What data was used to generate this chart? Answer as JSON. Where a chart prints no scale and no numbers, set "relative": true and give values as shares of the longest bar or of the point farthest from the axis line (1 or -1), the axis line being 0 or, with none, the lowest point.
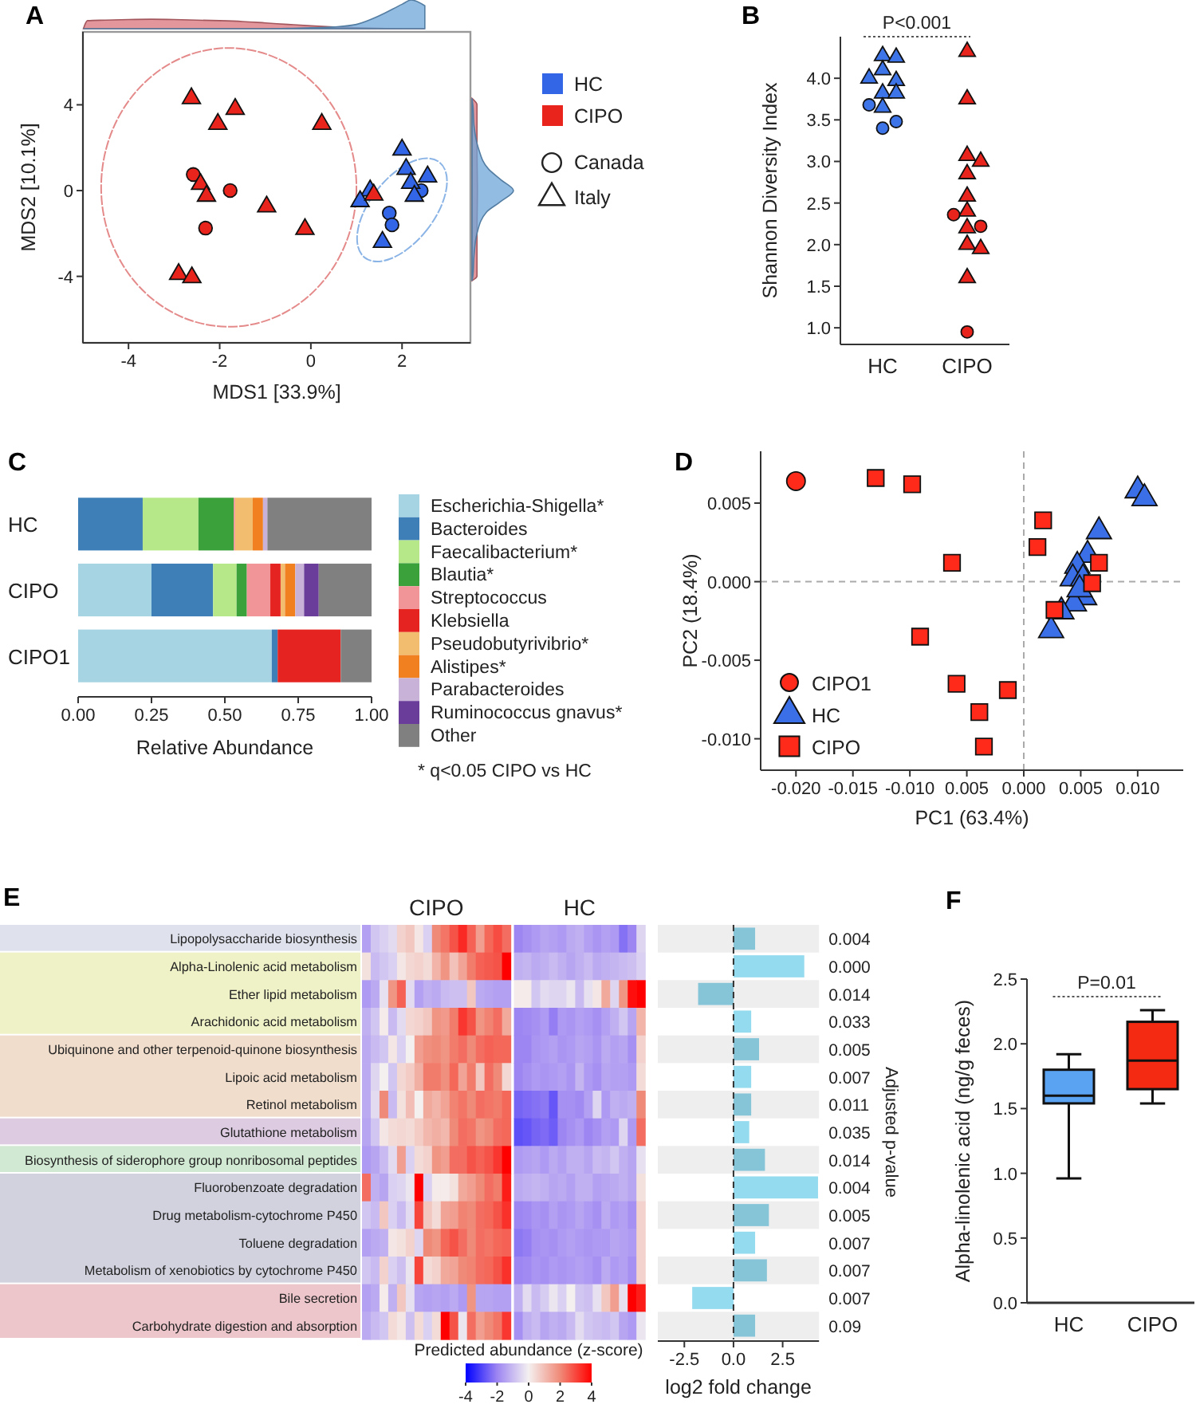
{
  "chart_data": [
    {
      "type": "scatter",
      "title": "A",
      "xlabel": "MDS1 [33.9%]",
      "ylabel": "MDS2 [10.1%]",
      "legend": "right",
      "annotations": [
        "Canada",
        "Italy"
      ],
      "xlim": [
        -5,
        3.5
      ],
      "ylim": [
        -7.1,
        7.4
      ],
      "xticks": [
        -4,
        -2,
        0,
        2
      ],
      "yticks": [
        -4,
        0,
        4
      ],
      "series": [
        {
          "name": "HC",
          "color": "#3366e6",
          "marker": "circle",
          "x": [
            2.42,
            1.72,
            1.78
          ],
          "values": [
            0,
            -1.05,
            -1.6
          ]
        },
        {
          "color": "#3366e6",
          "marker": "triangle",
          "x": [
            2.0,
            2.09,
            2.56,
            2.19,
            1.3,
            1.08,
            2.27,
            1.57
          ],
          "values": [
            1.9,
            1.0,
            0.65,
            0.35,
            0,
            -0.5,
            -0.25,
            -2.4
          ]
        },
        {
          "name": "CIPO",
          "color": "#e8241c",
          "marker": "circle",
          "x": [
            -2.58,
            -1.77,
            -2.31
          ],
          "values": [
            0.75,
            0,
            -1.75
          ]
        },
        {
          "color": "#e8241c",
          "marker": "triangle",
          "x": [
            -2.62,
            -1.66,
            -2.04,
            0.24,
            -2.42,
            -2.29,
            -0.97,
            -0.13,
            -2.9,
            -2.61,
            1.38
          ],
          "values": [
            4.3,
            3.8,
            3.1,
            3.1,
            0.3,
            -0.25,
            -0.75,
            -1.8,
            -3.9,
            -4.05,
            -0.2
          ]
        }
      ]
    },
    {
      "type": "area",
      "relative": true,
      "tick_labels": false,
      "xlim": [
        -5,
        3.5
      ],
      "x": [
        -4.99,
        -4.9,
        -4.5,
        -4,
        -3.5,
        -3,
        -2.5,
        -2,
        -1.5,
        -1,
        -0.5,
        0,
        0.5,
        1,
        1.5,
        2,
        2.2,
        2.5
      ],
      "series": [
        {
          "color": "#d9737a",
          "values": [
            0,
            0.28,
            0.3,
            0.32,
            0.33,
            0.32,
            0.3,
            0.28,
            0.25,
            0.2,
            0.15,
            0.1,
            0.06,
            0.03,
            0.01,
            0,
            0,
            0
          ]
        },
        {
          "color": "#6fa6d8",
          "values": [
            0,
            0,
            0,
            0,
            0,
            0,
            0,
            0,
            0,
            0,
            0.01,
            0.03,
            0.06,
            0.15,
            0.45,
            0.85,
            1,
            0.8
          ]
        }
      ]
    },
    {
      "type": "scatter",
      "title": "B",
      "ylabel": "Shannon Diversity Index",
      "categories": [
        "HC",
        "CIPO"
      ],
      "annotations": [
        "P<0.001"
      ],
      "ylim": [
        0.8,
        4.5
      ],
      "yticks": [
        {
          "value": 1,
          "label": "1.0"
        },
        1.5,
        {
          "value": 2,
          "label": "2.0"
        },
        2.5,
        {
          "value": 3,
          "label": "3.0"
        },
        3.5,
        {
          "value": 4,
          "label": "4.0"
        }
      ],
      "series": [
        {
          "color": "#3d74e8",
          "marker": "triangle",
          "x": [
            "HC",
            "HC",
            "HC",
            "HC",
            "HC",
            "HC",
            "HC",
            "HC"
          ],
          "values": [
            4.27,
            4.25,
            4.1,
            3.97,
            4.0,
            3.82,
            3.82,
            3.65
          ]
        },
        {
          "color": "#3d74e8",
          "marker": "circle",
          "x": [
            "HC",
            "HC",
            "HC"
          ],
          "values": [
            3.4,
            3.48,
            3.68
          ]
        },
        {
          "color": "#e8241c",
          "marker": "triangle",
          "x": [
            "CIPO",
            "CIPO",
            "CIPO",
            "CIPO",
            "CIPO",
            "CIPO",
            "CIPO",
            "CIPO",
            "CIPO",
            "CIPO",
            "CIPO"
          ],
          "values": [
            4.32,
            3.75,
            3.07,
            3.0,
            2.85,
            2.58,
            2.4,
            2.2,
            2.0,
            1.95,
            1.6
          ]
        },
        {
          "color": "#e8241c",
          "marker": "circle",
          "x": [
            "CIPO",
            "CIPO",
            "CIPO"
          ],
          "values": [
            2.22,
            2.36,
            0.95
          ]
        }
      ]
    },
    {
      "type": "bar",
      "title": "C",
      "orientation": "horizontal",
      "stacked": true,
      "legend": "right",
      "xlabel": "Relative Abundance",
      "annotations": [
        "* q<0.05 CIPO vs HC"
      ],
      "categories": [
        "HC",
        "CIPO",
        "CIPO1"
      ],
      "xlim": [
        0,
        1
      ],
      "xticks": [
        {
          "value": 0,
          "label": "0.00"
        },
        {
          "value": 0.25,
          "label": "0.25"
        },
        {
          "value": 0.5,
          "label": "0.50"
        },
        {
          "value": 0.75,
          "label": "0.75"
        },
        {
          "value": 1,
          "label": "1.00"
        }
      ],
      "series": [
        {
          "name": "Escherichia-Shigella*",
          "color": "#a6d4e3",
          "values": [
            0,
            0.25,
            0.66
          ]
        },
        {
          "name": "Bacteroides",
          "color": "#3f7fb8",
          "values": [
            0.22,
            0.21,
            0.02
          ]
        },
        {
          "name": "Faecalibacterium*",
          "color": "#b6e88a",
          "values": [
            0.19,
            0.08,
            0
          ]
        },
        {
          "name": "Blautia*",
          "color": "#3ba13a",
          "values": [
            0.12,
            0.035,
            0
          ]
        },
        {
          "name": "Streptococcus",
          "color": "#f19599",
          "values": [
            0.005,
            0.08,
            0
          ]
        },
        {
          "name": "Klebsiella",
          "color": "#e52421",
          "values": [
            0,
            0.035,
            0.215
          ]
        },
        {
          "name": "Pseudobutyrivibrio*",
          "color": "#f2bd6f",
          "values": [
            0.06,
            0.015,
            0
          ]
        },
        {
          "name": "Alistipes*",
          "color": "#f08020",
          "values": [
            0.035,
            0.035,
            0
          ]
        },
        {
          "name": "Parabacteroides",
          "color": "#c9b2d8",
          "values": [
            0.015,
            0.03,
            0
          ]
        },
        {
          "name": "Ruminococcus gnavus*",
          "color": "#6a3d9a",
          "values": [
            0,
            0.05,
            0
          ]
        },
        {
          "name": "Other",
          "color": "#808080",
          "values": [
            0.355,
            0.18,
            0.105
          ]
        }
      ]
    },
    {
      "type": "scatter",
      "title": "D",
      "xlabel": "PC1 (63.4%)",
      "ylabel": "PC2 (18.4%)",
      "legend": "bottom left",
      "xlim": [
        -0.0231,
        0.014
      ],
      "ylim": [
        -0.012,
        0.0083
      ],
      "xticks": [
        {
          "value": -0.02,
          "label": "-0.020"
        },
        -0.015,
        {
          "value": -0.01,
          "label": "-0.010"
        },
        {
          "value": -0.005,
          "label": "0.005"
        },
        {
          "value": 0,
          "label": "0.000"
        },
        0.005,
        {
          "value": 0.01,
          "label": "0.010"
        }
      ],
      "yticks": [
        0.005,
        {
          "value": 0,
          "label": "0.000"
        },
        -0.005,
        {
          "value": -0.01,
          "label": "-0.010"
        }
      ],
      "ref_lines": [
        {
          "axis": "x",
          "value": 0,
          "line_style": "dashed"
        },
        {
          "axis": "y",
          "value": 0,
          "line_style": "dashed"
        }
      ],
      "series": [
        {
          "name": "CIPO1",
          "color": "#ff2a1a",
          "marker": "circle",
          "x": [
            -0.02
          ],
          "values": [
            0.0064
          ]
        },
        {
          "name": "HC",
          "color": "#3b6fe8",
          "marker": "triangle",
          "x": [
            0.01,
            0.0106,
            0.0066,
            0.0056,
            0.0047,
            0.0043,
            0.0052,
            0.0053,
            0.0044,
            0.0033,
            0.0024,
            0.0049
          ],
          "values": [
            0.0058,
            0.0053,
            0.0032,
            0.0017,
            0.001,
            0.0002,
            0.0002,
            -0.001,
            -0.0014,
            -0.0019,
            -0.0031,
            -0.0005
          ]
        },
        {
          "name": "CIPO",
          "color": "#ff2a1a",
          "marker": "square",
          "x": [
            -0.013,
            -0.0098,
            -0.0063,
            -0.0091,
            -0.0059,
            -0.0014,
            -0.0039,
            -0.0035,
            0.0017,
            0.0012,
            0.0066,
            0.006,
            0.0027
          ],
          "values": [
            0.0066,
            0.0062,
            0.0012,
            -0.0035,
            -0.0065,
            -0.0069,
            -0.0083,
            -0.0105,
            0.0039,
            0.0022,
            0.0012,
            -0.0001,
            -0.0018
          ]
        }
      ]
    },
    {
      "type": "heatmap",
      "title": "E",
      "annotations": [
        "CIPO",
        "HC"
      ],
      "tick_labels": "y",
      "clim": [
        -4,
        4
      ],
      "cticks": [
        -4,
        -2,
        0,
        2,
        4
      ],
      "clabel": "Predicted abundance (z-score)",
      "categories": [
        null,
        null,
        null,
        null,
        null,
        null,
        null,
        null,
        null,
        null,
        null,
        null,
        null,
        null,
        null,
        null,
        null,
        null,
        null,
        null,
        null,
        null,
        null,
        null,
        null,
        null,
        null,
        null,
        null,
        null,
        null,
        null,
        null
      ],
      "y_categories": [
        "Lipopolysaccharide biosynthesis",
        "Alpha-Linolenic acid metabolism",
        "Ether lipid metabolism",
        "Arachidonic acid metabolism",
        "Ubiquinone and other terpenoid-quinone biosynthesis",
        "Lipoic acid metabolism",
        "Retinol metabolism",
        "Glutathione metabolism",
        "Biosynthesis of siderophore group nonribosomal peptides",
        "Fluorobenzoate degradation",
        "Drug metabolism-cytochrome P450",
        "Toluene degradation",
        "Metabolism of xenobiotics by cytochrome P450",
        "Bile secretion",
        "Carbohydrate digestion and absorption"
      ],
      "cells": [
        [
          -1.5,
          -0.8,
          -0.6,
          -0.4,
          0.6,
          0.8,
          0.2,
          -0.6,
          2.0,
          2.3,
          2.8,
          3.4,
          2.6,
          1.6,
          2.5,
          2.9,
          2.4,
          null,
          -2.0,
          -1.8,
          -1.6,
          -1.4,
          -1.5,
          -1.6,
          -1.3,
          -1.2,
          -1.5,
          -1.7,
          -1.5,
          -1.6,
          -2.3,
          -2.0,
          -0.5
        ],
        [
          0.3,
          -1.0,
          -0.8,
          -0.6,
          0.2,
          0.5,
          0.6,
          0.4,
          1.2,
          1.8,
          0.9,
          1.5,
          2.2,
          2.6,
          2.7,
          2.8,
          4.0,
          null,
          -1.2,
          -1.1,
          -1.3,
          -1.2,
          -1.0,
          -1.2,
          -1.4,
          -1.2,
          -1.0,
          -1.3,
          -1.2,
          -1.1,
          -1.0,
          -0.9,
          -0.6
        ],
        [
          -1.6,
          -1.3,
          -0.3,
          1.8,
          2.6,
          -0.4,
          -1.5,
          -1.2,
          -1.3,
          -1.0,
          -0.9,
          -0.9,
          0.8,
          -1.3,
          -1.4,
          -1.5,
          -1.5,
          null,
          0.1,
          0.1,
          -0.8,
          -0.4,
          -0.5,
          -0.5,
          -0.2,
          -1.0,
          -0.3,
          0.2,
          1.4,
          -0.5,
          1.8,
          3.8,
          4.0
        ],
        [
          -1.2,
          -0.8,
          0.1,
          -1.0,
          -0.4,
          0.5,
          0.6,
          0.8,
          1.8,
          1.7,
          2.2,
          3.2,
          2.8,
          1.8,
          2.1,
          2.4,
          1.4,
          null,
          -2.0,
          -1.9,
          -1.8,
          -1.6,
          -2.1,
          -1.6,
          -1.7,
          -1.5,
          -1.6,
          -1.8,
          -1.5,
          -1.2,
          -0.8,
          -1.4,
          1.2
        ],
        [
          -1.3,
          -1.0,
          -0.8,
          0.2,
          -0.6,
          0.0,
          1.6,
          1.9,
          2.0,
          1.8,
          2.2,
          2.4,
          2.0,
          2.4,
          2.6,
          2.5,
          2.5,
          null,
          -2.0,
          -2.0,
          -1.7,
          -1.6,
          -1.5,
          -1.7,
          -1.6,
          -1.4,
          -1.5,
          -1.7,
          -1.3,
          -1.5,
          -1.4,
          -1.8,
          0.6
        ],
        [
          -1.3,
          -0.5,
          0.0,
          -0.8,
          0.5,
          0.7,
          1.3,
          2.2,
          2.2,
          1.9,
          2.5,
          1.5,
          2.2,
          0.8,
          2.4,
          2.0,
          0.5,
          null,
          -2.0,
          -1.8,
          -1.6,
          -1.7,
          -1.6,
          -1.5,
          -1.7,
          -1.1,
          -1.6,
          -1.8,
          -1.4,
          -1.5,
          -1.5,
          -1.6,
          0.4
        ],
        [
          -1.3,
          -0.4,
          2.0,
          -1.0,
          0.3,
          1.0,
          0.0,
          1.4,
          1.2,
          1.5,
          2.1,
          2.3,
          2.0,
          2.4,
          2.3,
          2.2,
          2.5,
          null,
          -2.5,
          -2.4,
          -2.3,
          -2.2,
          -2.7,
          -1.8,
          -1.8,
          -1.9,
          -1.5,
          -0.5,
          -1.6,
          -1.2,
          -1.3,
          -1.2,
          2.0
        ],
        [
          -1.4,
          -0.8,
          0.2,
          0.4,
          0.5,
          0.4,
          0.7,
          1.1,
          1.3,
          1.1,
          2.0,
          2.4,
          2.3,
          1.8,
          2.0,
          2.4,
          2.5,
          null,
          -2.8,
          -2.7,
          -2.5,
          -2.4,
          -2.6,
          -2.0,
          -1.8,
          -1.6,
          -2.0,
          -1.8,
          -1.5,
          -1.6,
          -0.5,
          -1.6,
          2.4
        ],
        [
          -1.6,
          -1.4,
          -1.0,
          -0.4,
          1.6,
          -0.6,
          0.4,
          0.6,
          1.8,
          1.6,
          2.4,
          2.4,
          2.8,
          2.6,
          2.8,
          3.2,
          4.0,
          null,
          -1.6,
          -1.5,
          -1.4,
          -1.6,
          -1.3,
          -1.5,
          -1.2,
          -1.2,
          -1.4,
          -1.0,
          -1.1,
          -0.8,
          -1.2,
          -1.4,
          -0.3
        ],
        [
          2.4,
          -1.2,
          -1.4,
          -0.6,
          -0.5,
          -0.2,
          4.0,
          -0.6,
          0.1,
          0.1,
          0.3,
          1.4,
          1.6,
          2.0,
          2.4,
          2.2,
          3.6,
          null,
          -1.3,
          -1.2,
          -1.1,
          -1.2,
          -1.4,
          -1.3,
          -1.5,
          -1.2,
          -1.2,
          -1.5,
          -1.4,
          -1.3,
          -1.2,
          -1.4,
          0.3
        ],
        [
          -0.8,
          -1.0,
          0.8,
          -0.6,
          -1.0,
          -0.4,
          3.0,
          0.8,
          0.4,
          1.5,
          1.6,
          2.1,
          2.0,
          2.4,
          2.5,
          2.8,
          3.3,
          null,
          -2.0,
          -1.9,
          -1.7,
          -1.8,
          -1.5,
          -1.7,
          -1.6,
          -1.4,
          -1.6,
          -1.8,
          -1.3,
          -1.6,
          -1.5,
          -1.8,
          0.6
        ],
        [
          -1.5,
          -1.3,
          -1.2,
          0.2,
          0.3,
          0.6,
          -0.5,
          2.0,
          1.8,
          2.5,
          2.8,
          2.4,
          2.0,
          2.4,
          2.3,
          2.5,
          2.6,
          null,
          -2.2,
          -2.1,
          -1.8,
          -1.7,
          -1.8,
          -1.6,
          -1.5,
          -1.6,
          -1.7,
          -1.6,
          -1.6,
          -1.4,
          -1.5,
          -1.6,
          0.6
        ],
        [
          -0.8,
          -1.0,
          0.6,
          -0.6,
          -0.9,
          -0.2,
          3.0,
          0.4,
          0.6,
          1.4,
          1.5,
          2.0,
          2.1,
          2.4,
          2.5,
          2.8,
          3.3,
          null,
          -2.0,
          -1.9,
          -1.7,
          -1.8,
          -1.6,
          -1.7,
          -1.6,
          -1.5,
          -1.6,
          -1.8,
          -1.3,
          -1.6,
          -1.5,
          -1.8,
          0.6
        ],
        [
          -1.5,
          -1.3,
          0.1,
          -1.2,
          0.8,
          -0.3,
          -1.4,
          -1.5,
          -1.4,
          -1.5,
          -1.3,
          -1.6,
          1.8,
          -1.4,
          -1.4,
          -1.5,
          -1.5,
          null,
          -1.2,
          -0.4,
          -1.0,
          -0.7,
          -0.2,
          -0.6,
          0.0,
          -0.8,
          -0.9,
          -0.3,
          0.8,
          1.6,
          -0.3,
          4.0,
          3.6
        ],
        [
          -1.3,
          -1.0,
          -0.8,
          0.4,
          0.2,
          -0.9,
          0.4,
          -0.6,
          0.4,
          4.0,
          2.8,
          -0.2,
          2.4,
          1.6,
          2.0,
          2.3,
          3.2,
          null,
          -1.8,
          -1.2,
          -1.0,
          -1.4,
          -1.2,
          -1.3,
          -1.0,
          -0.4,
          -0.8,
          -0.9,
          -1.0,
          -0.8,
          -1.4,
          -1.6,
          -0.2
        ]
      ]
    },
    {
      "type": "bar",
      "orientation": "horizontal",
      "tick_labels": "x",
      "xlabel": "log2 fold change",
      "y2label": "Adjusted p-value",
      "categories": [
        null,
        null,
        null,
        null,
        null,
        null,
        null,
        null,
        null,
        null,
        null,
        null,
        null,
        null,
        null
      ],
      "y2_categories": [
        "0.004",
        "0.000",
        "0.014",
        "0.033",
        "0.005",
        "0.007",
        "0.011",
        "0.035",
        "0.014",
        "0.004",
        "0.005",
        "0.007",
        "0.007",
        "0.007",
        "0.09"
      ],
      "values": [
        1.1,
        3.6,
        -1.8,
        0.9,
        1.3,
        0.9,
        0.9,
        0.8,
        1.6,
        4.3,
        1.8,
        1.1,
        1.7,
        -2.1,
        1.1
      ],
      "colors": [
        "#86c5d8",
        "#95dbef",
        "#86c5d8",
        "#95dbef",
        "#86c5d8",
        "#95dbef",
        "#86c5d8",
        "#95dbef",
        "#86c5d8",
        "#95dbef",
        "#86c5d8",
        "#95dbef",
        "#86c5d8",
        "#95dbef",
        "#86c5d8"
      ],
      "xlim": [
        -3.85,
        4.35
      ],
      "xticks": [
        -2.5,
        {
          "value": 0,
          "label": "0.0"
        },
        2.5
      ],
      "ref_lines": [
        {
          "axis": "x",
          "value": 0,
          "line_style": "dashed"
        }
      ]
    },
    {
      "type": "box",
      "title": "F",
      "ylabel": "Alpha-linolenic acid (ng/g feces)",
      "categories": [
        "HC",
        "CIPO"
      ],
      "annotations": [
        "P=0.01"
      ],
      "colors": [
        "#5aa2f2",
        "#f52a12"
      ],
      "ylim": [
        0,
        2.5
      ],
      "yticks": [
        {
          "value": 0,
          "label": "0.0"
        },
        0.5,
        {
          "value": 1,
          "label": "1.0"
        },
        1.5,
        {
          "value": 2,
          "label": "2.0"
        },
        2.5
      ],
      "boxes": [
        {
          "low": 0.96,
          "q1": 1.54,
          "median": 1.6,
          "q3": 1.8,
          "high": 1.92
        },
        {
          "low": 1.54,
          "q1": 1.65,
          "median": 1.87,
          "q3": 2.17,
          "high": 2.26
        }
      ]
    }
  ]
}
